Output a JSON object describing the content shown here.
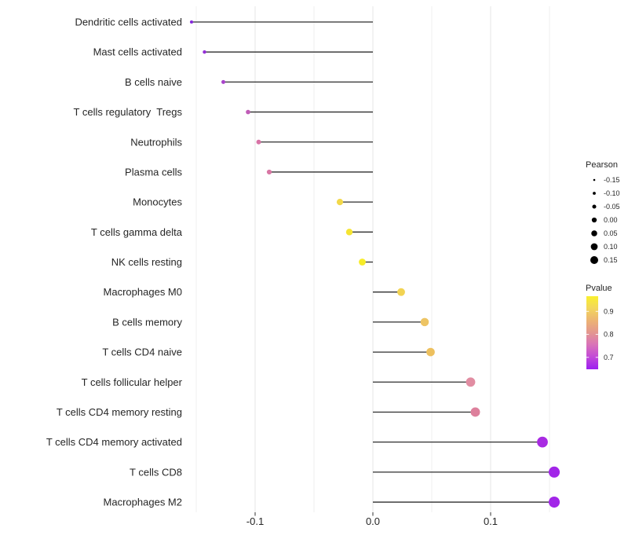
{
  "chart_data": {
    "type": "scatter",
    "variant": "horizontal-lollipop",
    "title": "",
    "xlabel": "",
    "ylabel": "",
    "xlim": [
      -0.16,
      0.16
    ],
    "x_major_ticks": [
      -0.1,
      0.0,
      0.1
    ],
    "x_major_tick_labels": [
      "-0.1",
      "0.0",
      "0.1"
    ],
    "x_minor_ticks": [
      -0.15,
      -0.05,
      0.05,
      0.15
    ],
    "baseline_x": 0.0,
    "grid": true,
    "legend_position": "right",
    "categories": [
      "Dendritic cells activated",
      "Mast cells activated",
      "B cells naive",
      "T cells regulatory  Tregs",
      "Neutrophils",
      "Plasma cells",
      "Monocytes",
      "T cells gamma delta",
      "NK cells resting",
      "Macrophages M0",
      "B cells memory",
      "T cells CD4 naive",
      "T cells follicular helper",
      "T cells CD4 memory resting",
      "T cells CD4 memory activated",
      "T cells CD8",
      "Macrophages M2"
    ],
    "points": [
      {
        "category": "Dendritic cells activated",
        "pearson": -0.154,
        "pvalue": 0.66,
        "color": "#8629db"
      },
      {
        "category": "Mast cells activated",
        "pearson": -0.143,
        "pvalue": 0.67,
        "color": "#942fd6"
      },
      {
        "category": "B cells naive",
        "pearson": -0.127,
        "pvalue": 0.7,
        "color": "#a944cb"
      },
      {
        "category": "T cells regulatory  Tregs",
        "pearson": -0.106,
        "pvalue": 0.74,
        "color": "#c05cb7"
      },
      {
        "category": "Neutrophils",
        "pearson": -0.097,
        "pvalue": 0.77,
        "color": "#d873a6"
      },
      {
        "category": "Plasma cells",
        "pearson": -0.088,
        "pvalue": 0.77,
        "color": "#d876a4"
      },
      {
        "category": "Monocytes",
        "pearson": -0.028,
        "pvalue": 0.92,
        "color": "#f2d84a"
      },
      {
        "category": "T cells gamma delta",
        "pearson": -0.02,
        "pvalue": 0.94,
        "color": "#f5e433"
      },
      {
        "category": "NK cells resting",
        "pearson": -0.009,
        "pvalue": 0.96,
        "color": "#f7ec28"
      },
      {
        "category": "Macrophages M0",
        "pearson": 0.024,
        "pvalue": 0.91,
        "color": "#f2d352"
      },
      {
        "category": "B cells memory",
        "pearson": 0.044,
        "pvalue": 0.89,
        "color": "#edc464"
      },
      {
        "category": "T cells CD4 naive",
        "pearson": 0.049,
        "pvalue": 0.88,
        "color": "#edc05e"
      },
      {
        "category": "T cells follicular helper",
        "pearson": 0.083,
        "pvalue": 0.79,
        "color": "#e18da2"
      },
      {
        "category": "T cells CD4 memory resting",
        "pearson": 0.087,
        "pvalue": 0.78,
        "color": "#dd809c"
      },
      {
        "category": "T cells CD4 memory activated",
        "pearson": 0.144,
        "pvalue": 0.68,
        "color": "#a82ae2"
      },
      {
        "category": "T cells CD8",
        "pearson": 0.154,
        "pvalue": 0.66,
        "color": "#a226e8"
      },
      {
        "category": "Macrophages M2",
        "pearson": 0.154,
        "pvalue": 0.66,
        "color": "#a226e8"
      }
    ],
    "legends": {
      "size": {
        "title": "Pearson",
        "entries": [
          {
            "label": "-0.15",
            "value": -0.15
          },
          {
            "label": "-0.10",
            "value": -0.1
          },
          {
            "label": "-0.05",
            "value": -0.05
          },
          {
            "label": "0.00",
            "value": 0.0
          },
          {
            "label": "0.05",
            "value": 0.05
          },
          {
            "label": "0.10",
            "value": 0.1
          },
          {
            "label": "0.15",
            "value": 0.15
          }
        ],
        "dot_color": "#000000"
      },
      "color": {
        "title": "Pvalue",
        "ticks": [
          {
            "label": "0.9",
            "value": 0.9
          },
          {
            "label": "0.8",
            "value": 0.8
          },
          {
            "label": "0.7",
            "value": 0.7
          }
        ],
        "bar_value_top": 0.966,
        "bar_value_bottom": 0.648,
        "gradient_stops": [
          {
            "offset": 0.0,
            "color": "#f9f02e"
          },
          {
            "offset": 0.16,
            "color": "#f3d75b"
          },
          {
            "offset": 0.34,
            "color": "#ecb274"
          },
          {
            "offset": 0.5,
            "color": "#e39690"
          },
          {
            "offset": 0.66,
            "color": "#d973b8"
          },
          {
            "offset": 0.82,
            "color": "#c44cd6"
          },
          {
            "offset": 1.0,
            "color": "#9c1ff0"
          }
        ]
      }
    },
    "style_colors": {
      "stick": "#2e2e2e",
      "grid_major": "#e4e4e4",
      "grid_minor": "#efefef",
      "axis_tick": "#333333"
    }
  }
}
